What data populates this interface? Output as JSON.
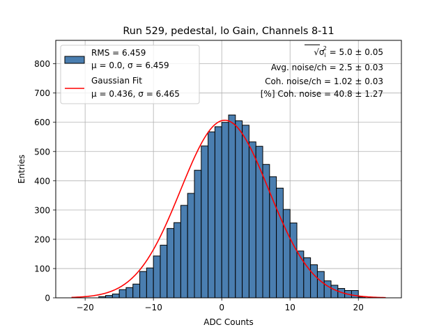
{
  "chart_data": {
    "type": "histogram",
    "title": "Run 529, pedestal, lo Gain, Channels 8-11",
    "xlabel": "ADC Counts",
    "ylabel": "Entries",
    "xlim": [
      -24.3,
      26.3
    ],
    "ylim": [
      0,
      880
    ],
    "xticks": [
      -20,
      -10,
      0,
      10,
      20
    ],
    "xtick_labels": [
      "−20",
      "−10",
      "0",
      "10",
      "20"
    ],
    "yticks": [
      0,
      100,
      200,
      300,
      400,
      500,
      600,
      700,
      800
    ],
    "grid": true,
    "bin_width": 1,
    "bin_start": -18,
    "counts": [
      4,
      8,
      13,
      28,
      35,
      47,
      90,
      102,
      143,
      180,
      237,
      257,
      316,
      357,
      436,
      519,
      567,
      585,
      600,
      625,
      605,
      590,
      533,
      518,
      456,
      414,
      375,
      302,
      256,
      160,
      137,
      113,
      90,
      58,
      43,
      32,
      25,
      25,
      3
    ],
    "bar_color": "#4a7eb0",
    "fit": {
      "mu": 0.436,
      "sigma": 6.465,
      "amplitude": 607,
      "x_range": [
        -22,
        24
      ],
      "color": "#ff0000"
    },
    "legend": {
      "position": "upper-left",
      "entries": [
        {
          "line1": "RMS = 6.459",
          "line2": "μ = 0.0, σ = 6.459",
          "marker": "patch"
        },
        {
          "line1": "Gaussian Fit",
          "line2": "μ = 0.436, σ = 6.465",
          "marker": "line"
        }
      ]
    },
    "annotations": [
      {
        "prefix": "√σ",
        "sub": "i",
        "sup": "2",
        "suffix": " = 5.0 ± 0.05"
      },
      {
        "text": "Avg. noise/ch = 2.5 ± 0.03"
      },
      {
        "text": "Coh. noise/ch = 1.02 ± 0.03"
      },
      {
        "text": "[%] Coh. noise = 40.8 ± 1.27"
      }
    ]
  }
}
